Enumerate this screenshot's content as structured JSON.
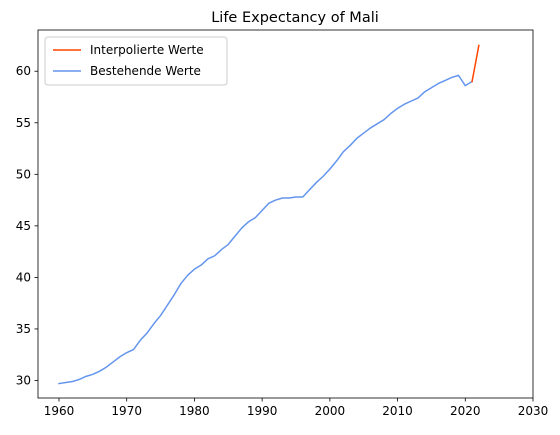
{
  "chart_data": {
    "type": "line",
    "title": "Life Expectancy of Mali",
    "xlabel": "",
    "ylabel": "",
    "xlim": [
      1956.9,
      2030
    ],
    "ylim": [
      28.3,
      64.0
    ],
    "xticks": [
      1960,
      1970,
      1980,
      1990,
      2000,
      2010,
      2020,
      2030
    ],
    "yticks": [
      30,
      35,
      40,
      45,
      50,
      55,
      60
    ],
    "grid": false,
    "legend_position": "top-left",
    "series": [
      {
        "name": "Interpolierte Werte",
        "color": "#ff4500",
        "x": [
          2021,
          2022
        ],
        "y": [
          59.0,
          62.5
        ]
      },
      {
        "name": "Bestehende Werte",
        "color": "#6495ed",
        "x": [
          1960,
          1961,
          1962,
          1963,
          1964,
          1965,
          1966,
          1967,
          1968,
          1969,
          1970,
          1971,
          1972,
          1973,
          1974,
          1975,
          1976,
          1977,
          1978,
          1979,
          1980,
          1981,
          1982,
          1983,
          1984,
          1985,
          1986,
          1987,
          1988,
          1989,
          1990,
          1991,
          1992,
          1993,
          1994,
          1995,
          1996,
          1997,
          1998,
          1999,
          2000,
          2001,
          2002,
          2003,
          2004,
          2005,
          2006,
          2007,
          2008,
          2009,
          2010,
          2011,
          2012,
          2013,
          2014,
          2015,
          2016,
          2017,
          2018,
          2019,
          2020,
          2021
        ],
        "y": [
          29.7,
          29.8,
          29.9,
          30.1,
          30.4,
          30.6,
          30.9,
          31.3,
          31.8,
          32.3,
          32.7,
          33.0,
          33.9,
          34.6,
          35.5,
          36.3,
          37.3,
          38.3,
          39.4,
          40.2,
          40.8,
          41.2,
          41.8,
          42.1,
          42.7,
          43.2,
          44.0,
          44.8,
          45.4,
          45.8,
          46.5,
          47.2,
          47.5,
          47.7,
          47.7,
          47.8,
          47.8,
          48.5,
          49.2,
          49.8,
          50.5,
          51.3,
          52.2,
          52.8,
          53.5,
          54.0,
          54.5,
          54.9,
          55.3,
          55.9,
          56.4,
          56.8,
          57.1,
          57.4,
          58.0,
          58.4,
          58.8,
          59.1,
          59.4,
          59.6,
          58.6,
          59.0
        ]
      }
    ]
  }
}
